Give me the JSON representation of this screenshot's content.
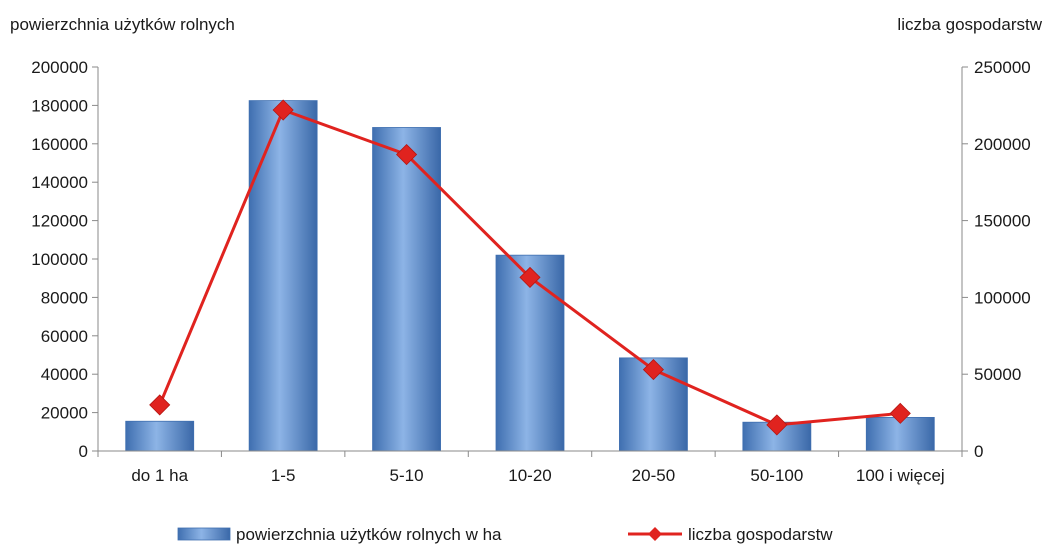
{
  "chart_data": {
    "type": "bar",
    "categories": [
      "do 1 ha",
      "1-5",
      "5-10",
      "10-20",
      "20-50",
      "50-100",
      "100 i więcej"
    ],
    "y_left": {
      "label": "powierzchnia użytków rolnych",
      "ylim": [
        0,
        200000
      ],
      "ticks": [
        0,
        20000,
        40000,
        60000,
        80000,
        100000,
        120000,
        140000,
        160000,
        180000,
        200000
      ]
    },
    "y_right": {
      "label": "liczba gospodarstw",
      "ylim": [
        0,
        250000
      ],
      "ticks": [
        0,
        50000,
        100000,
        150000,
        200000,
        250000
      ]
    },
    "series": [
      {
        "name": "powierzchnia użytków rolnych w ha",
        "type": "bar",
        "axis": "left",
        "color": "#5b8fd0",
        "values": [
          15500,
          182500,
          168500,
          102000,
          48500,
          15000,
          17500
        ]
      },
      {
        "name": "liczba gospodarstw",
        "type": "line",
        "axis": "right",
        "color": "#e0231f",
        "marker": "diamond",
        "values": [
          30000,
          222000,
          193000,
          113000,
          53000,
          17000,
          24500
        ]
      }
    ],
    "legend_position": "bottom",
    "grid": false
  }
}
